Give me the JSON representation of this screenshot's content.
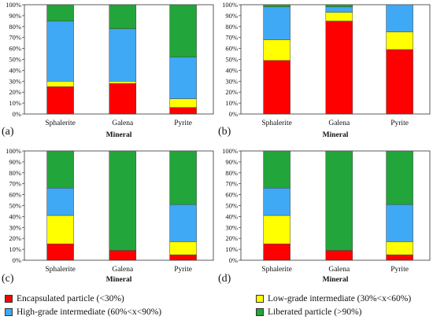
{
  "colors": {
    "encapsulated": "#ff0000",
    "low_grade": "#ffff00",
    "high_grade": "#3fa9f5",
    "liberated": "#22a53a"
  },
  "legend": {
    "encapsulated": "Encapsulated particle (<30%)",
    "low_grade": "Low-grade intermediate (30%<x<60%)",
    "high_grade": "High-grade intermediate (60%<x<90%)",
    "liberated": "Liberated particle (>90%)"
  },
  "chart_data": [
    {
      "type": "bar",
      "stacked": true,
      "panel_label": "(a)",
      "xlabel": "Mineral",
      "categories": [
        "Sphalerite",
        "Galena",
        "Pyrite"
      ],
      "ylim": [
        0,
        100
      ],
      "yticks": [
        "0%",
        "10%",
        "20%",
        "30%",
        "40%",
        "50%",
        "60%",
        "70%",
        "80%",
        "90%",
        "100%"
      ],
      "series": [
        {
          "name": "Encapsulated particle (<30%)",
          "key": "encapsulated",
          "values": [
            25,
            28,
            6
          ]
        },
        {
          "name": "Low-grade intermediate (30%<x<60%)",
          "key": "low_grade",
          "values": [
            5,
            2,
            8
          ]
        },
        {
          "name": "High-grade intermediate (60%<x<90%)",
          "key": "high_grade",
          "values": [
            55,
            48,
            38
          ]
        },
        {
          "name": "Liberated particle (>90%)",
          "key": "liberated",
          "values": [
            15,
            22,
            48
          ]
        }
      ]
    },
    {
      "type": "bar",
      "stacked": true,
      "panel_label": "(b)",
      "xlabel": "Mineral",
      "categories": [
        "Sphalerite",
        "Galena",
        "Pyrite"
      ],
      "ylim": [
        0,
        100
      ],
      "yticks": [
        "0%",
        "10%",
        "20%",
        "30%",
        "40%",
        "50%",
        "60%",
        "70%",
        "80%",
        "90%",
        "100%"
      ],
      "series": [
        {
          "name": "Encapsulated particle (<30%)",
          "key": "encapsulated",
          "values": [
            49,
            85,
            59
          ]
        },
        {
          "name": "Low-grade intermediate (30%<x<60%)",
          "key": "low_grade",
          "values": [
            19,
            8,
            16
          ]
        },
        {
          "name": "High-grade intermediate (60%<x<90%)",
          "key": "high_grade",
          "values": [
            30,
            5,
            25
          ]
        },
        {
          "name": "Liberated particle (>90%)",
          "key": "liberated",
          "values": [
            2,
            2,
            0
          ]
        }
      ]
    },
    {
      "type": "bar",
      "stacked": true,
      "panel_label": "(c)",
      "xlabel": "Mineral",
      "categories": [
        "Sphalerite",
        "Galena",
        "Pyrite"
      ],
      "ylim": [
        0,
        100
      ],
      "yticks": [
        "0%",
        "10%",
        "20%",
        "30%",
        "40%",
        "50%",
        "60%",
        "70%",
        "80%",
        "90%",
        "100%"
      ],
      "series": [
        {
          "name": "Encapsulated particle (<30%)",
          "key": "encapsulated",
          "values": [
            15,
            9,
            5
          ]
        },
        {
          "name": "Low-grade intermediate (30%<x<60%)",
          "key": "low_grade",
          "values": [
            26,
            0,
            12
          ]
        },
        {
          "name": "High-grade intermediate (60%<x<90%)",
          "key": "high_grade",
          "values": [
            25,
            0,
            34
          ]
        },
        {
          "name": "Liberated particle (>90%)",
          "key": "liberated",
          "values": [
            34,
            91,
            49
          ]
        }
      ]
    },
    {
      "type": "bar",
      "stacked": true,
      "panel_label": "(d)",
      "xlabel": "Mineral",
      "categories": [
        "Sphalerite",
        "Galena",
        "Pyrite"
      ],
      "ylim": [
        0,
        100
      ],
      "yticks": [
        "0%",
        "10%",
        "20%",
        "30%",
        "40%",
        "50%",
        "60%",
        "70%",
        "80%",
        "90%",
        "100%"
      ],
      "series": [
        {
          "name": "Encapsulated particle (<30%)",
          "key": "encapsulated",
          "values": [
            15,
            9,
            5
          ]
        },
        {
          "name": "Low-grade intermediate (30%<x<60%)",
          "key": "low_grade",
          "values": [
            26,
            0,
            12
          ]
        },
        {
          "name": "High-grade intermediate (60%<x<90%)",
          "key": "high_grade",
          "values": [
            25,
            0,
            34
          ]
        },
        {
          "name": "Liberated particle (>90%)",
          "key": "liberated",
          "values": [
            34,
            91,
            49
          ]
        }
      ]
    }
  ]
}
